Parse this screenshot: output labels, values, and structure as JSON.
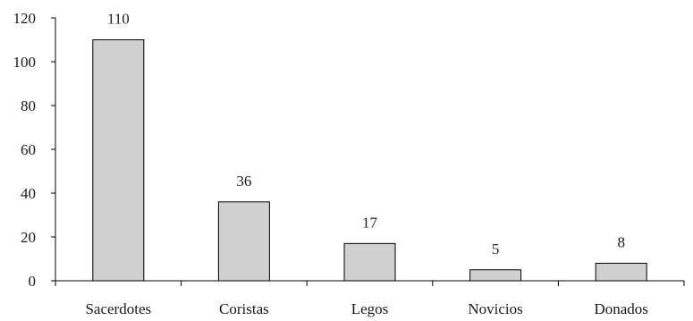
{
  "chart_data": {
    "type": "bar",
    "categories": [
      "Sacerdotes",
      "Coristas",
      "Legos",
      "Novicios",
      "Donados"
    ],
    "values": [
      110,
      36,
      17,
      5,
      8
    ],
    "data_labels": [
      "110",
      "36",
      "17",
      "5",
      "8"
    ],
    "title": "",
    "xlabel": "",
    "ylabel": "",
    "ylim": [
      0,
      120
    ],
    "yticks": [
      0,
      20,
      40,
      60,
      80,
      100,
      120
    ],
    "ytick_labels": [
      "0",
      "20",
      "40",
      "60",
      "80",
      "100",
      "120"
    ],
    "grid": false,
    "legend": "none",
    "bar_color": "#d0d0d0",
    "bar_edge_color": "#000000"
  }
}
